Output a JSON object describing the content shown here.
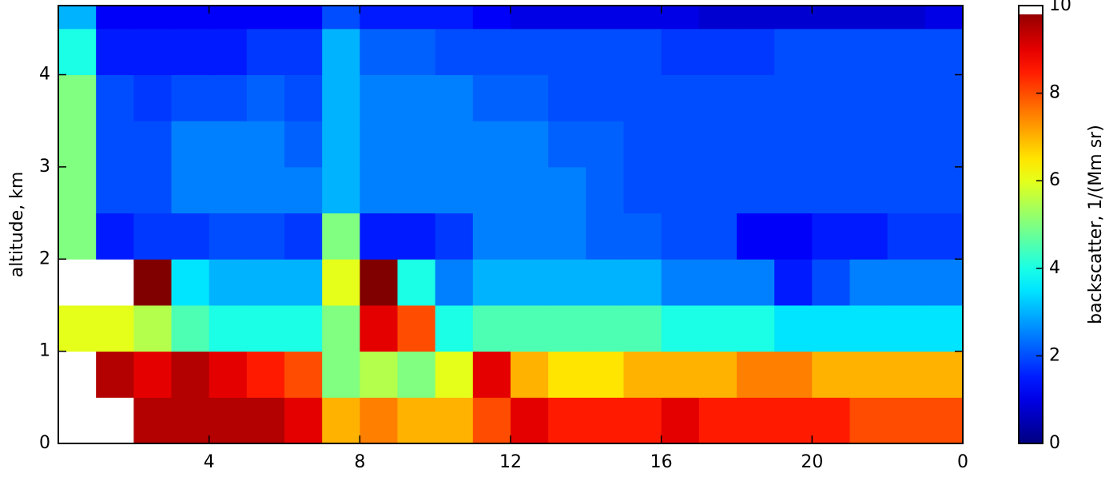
{
  "chart_data": {
    "type": "heatmap",
    "ylabel": "altitude, km",
    "colorbar_label": "backscatter, 1/(Mm sr)",
    "colormap": "jet",
    "over_color": "#ffffff",
    "x": [
      0,
      1,
      2,
      3,
      4,
      5,
      6,
      7,
      8,
      9,
      10,
      11,
      12,
      13,
      14,
      15,
      16,
      17,
      18,
      19,
      20,
      21,
      22,
      23,
      24
    ],
    "y": [
      0,
      0.5,
      1,
      1.5,
      2,
      2.5,
      3,
      3.5,
      4,
      4.5,
      4.75
    ],
    "z": [
      [
        10.5,
        10.5,
        9.5,
        9.5,
        9.5,
        9.5,
        9,
        7,
        7.5,
        7,
        7,
        8,
        9,
        8.5,
        8.5,
        8.5,
        9,
        8.5,
        8.5,
        8.5,
        8.5,
        8,
        8,
        8
      ],
      [
        10.5,
        9.5,
        9,
        9.5,
        9,
        8.5,
        8,
        5,
        5.5,
        5,
        6,
        9,
        7,
        6.5,
        6.5,
        7,
        7,
        7,
        7.5,
        7.5,
        7,
        7,
        7,
        7
      ],
      [
        6,
        6,
        5.5,
        4.5,
        4,
        4,
        4,
        5,
        9,
        8,
        4,
        4.5,
        4.5,
        4.5,
        4.5,
        4.5,
        4,
        4,
        4,
        3.5,
        3.5,
        3.5,
        3.5,
        3.5
      ],
      [
        11,
        11,
        10,
        3.5,
        3,
        3,
        3,
        6,
        10,
        4,
        2.5,
        3,
        3,
        3,
        3,
        3,
        2.5,
        2.5,
        2.5,
        1.5,
        2,
        2.5,
        2.5,
        2.5
      ],
      [
        5,
        1.5,
        1.8,
        1.8,
        2,
        2,
        1.8,
        5,
        1.5,
        1.5,
        1.8,
        2.5,
        2.5,
        2.5,
        2.2,
        2.2,
        2,
        2,
        1.2,
        1.2,
        1.5,
        1.5,
        1.8,
        1.8
      ],
      [
        5,
        2,
        2,
        2.5,
        2.5,
        2.5,
        2.5,
        3,
        2.5,
        2.5,
        2.5,
        2.5,
        2.5,
        2.5,
        2.2,
        2,
        2,
        2,
        2,
        2,
        2,
        2,
        2,
        2
      ],
      [
        5,
        2,
        2,
        2.5,
        2.5,
        2.5,
        2.2,
        3,
        2.5,
        2.5,
        2.5,
        2.5,
        2.5,
        2.2,
        2.2,
        2,
        2,
        2,
        2,
        2,
        2,
        2,
        2,
        2
      ],
      [
        5,
        2,
        1.8,
        2,
        2,
        2.2,
        2,
        3,
        2.5,
        2.5,
        2.5,
        2.2,
        2.2,
        2,
        2,
        2,
        2,
        2,
        2,
        2,
        2,
        2,
        2,
        2
      ],
      [
        4,
        1.5,
        1.5,
        1.5,
        1.5,
        1.8,
        1.8,
        3,
        2.2,
        2.2,
        2,
        2,
        2,
        2,
        2,
        2,
        1.8,
        1.8,
        1.8,
        2,
        2,
        2,
        2,
        2
      ],
      [
        3,
        1.2,
        1.2,
        1.2,
        1.2,
        1.2,
        1.2,
        2,
        1.5,
        1.5,
        1.5,
        1.2,
        1,
        1,
        1,
        1,
        1,
        0.8,
        0.8,
        0.8,
        0.8,
        0.8,
        0.8,
        1
      ]
    ],
    "xlim": [
      0,
      24
    ],
    "xticks": [
      4,
      8,
      12,
      16,
      20,
      {
        "value": 24,
        "label": "0"
      }
    ],
    "ylim": [
      0,
      4.75
    ],
    "yticks": [
      0,
      1,
      2,
      3,
      4
    ],
    "clim": [
      0,
      10
    ],
    "cticks": [
      0,
      2,
      4,
      6,
      8,
      10
    ]
  }
}
